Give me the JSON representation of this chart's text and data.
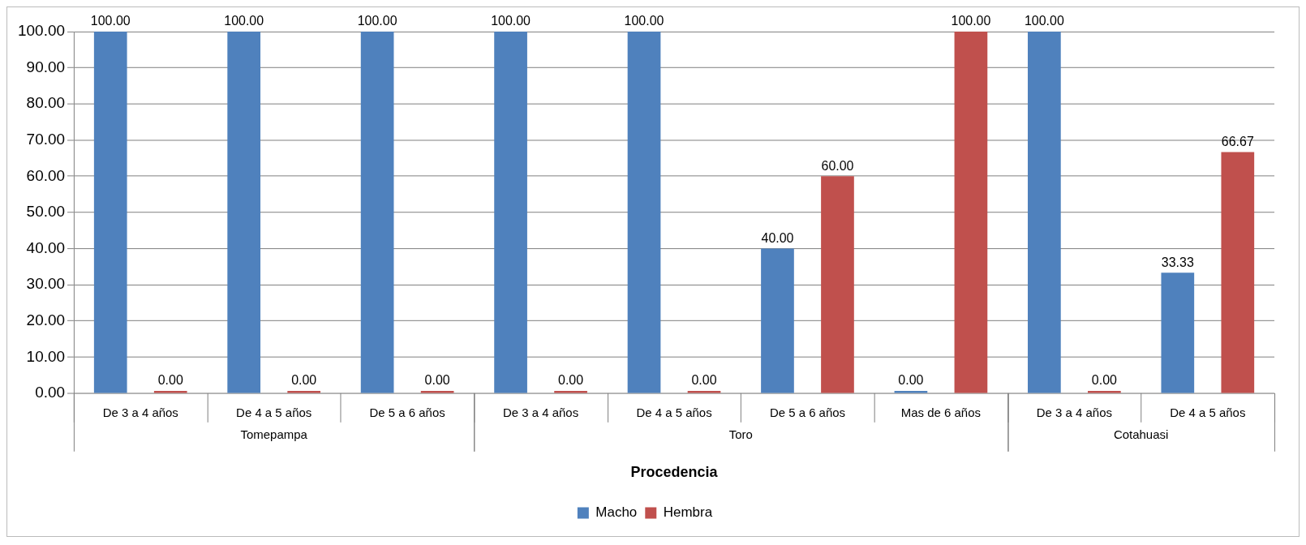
{
  "chart_data": {
    "type": "bar",
    "xlabel": "Procedencia",
    "categories": [
      "De 3 a 4 años",
      "De 4 a 5 años",
      "De 5 a 6 años",
      "De 3 a 4 años",
      "De 4 a 5 años",
      "De 5 a 6 años",
      "Mas de 6 años",
      "De 3 a 4 años",
      "De 4 a 5 años"
    ],
    "series": [
      {
        "name": "Macho",
        "color": "#4f81bd",
        "values": [
          100,
          100,
          100,
          100,
          100,
          40,
          0,
          100,
          33.33
        ],
        "value_labels": [
          "100.00",
          "100.00",
          "100.00",
          "100.00",
          "100.00",
          "40.00",
          "0.00",
          "100.00",
          "33.33"
        ]
      },
      {
        "name": "Hembra",
        "color": "#c0504d",
        "values": [
          0,
          0,
          0,
          0,
          0,
          60,
          100,
          0,
          66.67
        ],
        "value_labels": [
          "0.00",
          "0.00",
          "0.00",
          "0.00",
          "0.00",
          "60.00",
          "100.00",
          "0.00",
          "66.67"
        ]
      }
    ],
    "annotations": [
      "Tomepampa",
      "Toro",
      "Cotahuasi"
    ],
    "ylim": [
      0,
      100
    ],
    "yticks": [
      {
        "value": 0,
        "label": "0.00"
      },
      {
        "value": 10,
        "label": "10.00"
      },
      {
        "value": 20,
        "label": "20.00"
      },
      {
        "value": 30,
        "label": "30.00"
      },
      {
        "value": 40,
        "label": "40.00"
      },
      {
        "value": 50,
        "label": "50.00"
      },
      {
        "value": 60,
        "label": "60.00"
      },
      {
        "value": 70,
        "label": "70.00"
      },
      {
        "value": 80,
        "label": "80.00"
      },
      {
        "value": 90,
        "label": "90.00"
      },
      {
        "value": 100,
        "label": "100.00"
      }
    ],
    "grid": "y",
    "legend": "bottom"
  }
}
